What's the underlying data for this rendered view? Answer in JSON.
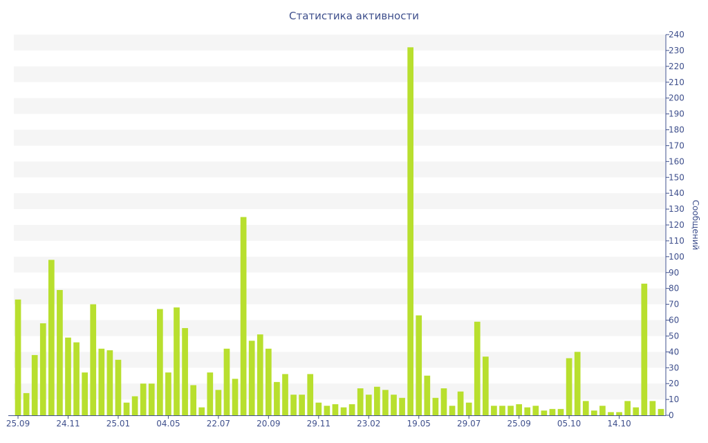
{
  "chart_data": {
    "type": "bar",
    "title": "Статистика активности",
    "ylabel": "Сообщений",
    "ylim": [
      0,
      240
    ],
    "y_ticks": [
      0,
      10,
      20,
      30,
      40,
      50,
      60,
      70,
      80,
      90,
      100,
      110,
      120,
      130,
      140,
      150,
      160,
      170,
      180,
      190,
      200,
      210,
      220,
      230,
      240
    ],
    "y_axis_side": "right",
    "grid": "alternating horizontal bands",
    "colors": {
      "bar": "#b8df2e",
      "band": "#f5f5f5",
      "text": "#3e4f8c",
      "axis": "#3e4f8c"
    },
    "x_tick_labels": [
      "25.09",
      "24.11",
      "25.01",
      "04.05",
      "22.07",
      "20.09",
      "29.11",
      "23.02",
      "19.05",
      "29.07",
      "25.09",
      "05.10",
      "14.10"
    ],
    "x_tick_positions": [
      0,
      6,
      12,
      18,
      24,
      30,
      36,
      42,
      48,
      54,
      60,
      66,
      72
    ],
    "values": [
      73,
      14,
      38,
      58,
      98,
      79,
      49,
      46,
      27,
      70,
      42,
      41,
      35,
      8,
      12,
      20,
      20,
      67,
      27,
      68,
      55,
      19,
      5,
      27,
      16,
      42,
      23,
      125,
      47,
      51,
      42,
      21,
      26,
      13,
      13,
      26,
      8,
      6,
      7,
      5,
      7,
      17,
      13,
      18,
      16,
      13,
      11,
      232,
      63,
      25,
      11,
      17,
      6,
      15,
      8,
      59,
      37,
      6,
      6,
      6,
      7,
      5,
      6,
      3,
      4,
      4,
      36,
      40,
      9,
      3,
      6,
      2,
      2,
      9,
      5,
      83,
      9,
      4
    ]
  }
}
